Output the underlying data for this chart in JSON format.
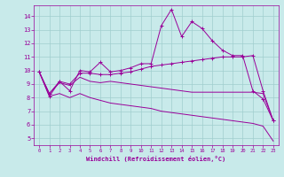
{
  "xlabel": "Windchill (Refroidissement éolien,°C)",
  "background_color": "#c8eaea",
  "line_color": "#990099",
  "grid_color": "#a0cece",
  "xlim": [
    -0.5,
    23.5
  ],
  "ylim": [
    4.5,
    14.8
  ],
  "yticks": [
    5,
    6,
    7,
    8,
    9,
    10,
    11,
    12,
    13,
    14
  ],
  "xticks": [
    0,
    1,
    2,
    3,
    4,
    5,
    6,
    7,
    8,
    9,
    10,
    11,
    12,
    13,
    14,
    15,
    16,
    17,
    18,
    19,
    20,
    21,
    22,
    23
  ],
  "line1_x": [
    0,
    1,
    2,
    3,
    4,
    5,
    6,
    7,
    8,
    9,
    10,
    11,
    12,
    13,
    14,
    15,
    16,
    17,
    18,
    19,
    20,
    21,
    22,
    23
  ],
  "line1_y": [
    9.9,
    8.1,
    9.2,
    8.5,
    10.0,
    9.9,
    10.6,
    9.9,
    10.0,
    10.2,
    10.5,
    10.5,
    13.3,
    14.5,
    12.5,
    13.6,
    13.1,
    12.2,
    11.5,
    11.1,
    11.1,
    8.5,
    7.9,
    6.3
  ],
  "line2_x": [
    0,
    1,
    2,
    3,
    4,
    5,
    6,
    7,
    8,
    9,
    10,
    11,
    12,
    13,
    14,
    15,
    16,
    17,
    18,
    19,
    20,
    21,
    22,
    23
  ],
  "line2_y": [
    9.9,
    8.3,
    9.2,
    9.0,
    9.8,
    9.8,
    9.7,
    9.7,
    9.8,
    9.9,
    10.1,
    10.3,
    10.4,
    10.5,
    10.6,
    10.7,
    10.8,
    10.9,
    11.0,
    11.0,
    11.0,
    11.1,
    8.5,
    6.3
  ],
  "line3_x": [
    0,
    1,
    2,
    3,
    4,
    5,
    6,
    7,
    8,
    9,
    10,
    11,
    12,
    13,
    14,
    15,
    16,
    17,
    18,
    19,
    20,
    21,
    22,
    23
  ],
  "line3_y": [
    9.9,
    8.3,
    9.1,
    8.9,
    9.5,
    9.2,
    9.1,
    9.2,
    9.1,
    9.0,
    8.9,
    8.8,
    8.7,
    8.6,
    8.5,
    8.4,
    8.4,
    8.4,
    8.4,
    8.4,
    8.4,
    8.4,
    8.3,
    6.3
  ],
  "line4_x": [
    0,
    1,
    2,
    3,
    4,
    5,
    6,
    7,
    8,
    9,
    10,
    11,
    12,
    13,
    14,
    15,
    16,
    17,
    18,
    19,
    20,
    21,
    22,
    23
  ],
  "line4_y": [
    9.9,
    8.1,
    8.3,
    8.0,
    8.3,
    8.0,
    7.8,
    7.6,
    7.5,
    7.4,
    7.3,
    7.2,
    7.0,
    6.9,
    6.8,
    6.7,
    6.6,
    6.5,
    6.4,
    6.3,
    6.2,
    6.1,
    5.9,
    4.8
  ]
}
